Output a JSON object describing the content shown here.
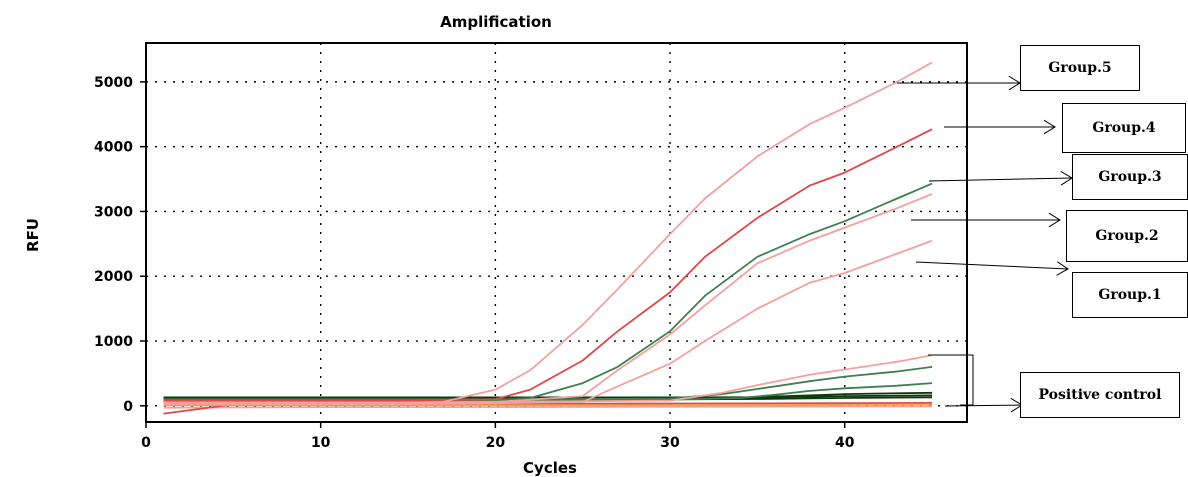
{
  "chart_data": {
    "type": "line",
    "title": "Amplification",
    "xlabel": "Cycles",
    "ylabel": "RFU",
    "xlim": [
      0,
      47
    ],
    "ylim": [
      -250,
      5600
    ],
    "xticks": [
      0,
      10,
      20,
      30,
      40
    ],
    "yticks": [
      0,
      1000,
      2000,
      3000,
      4000,
      5000
    ],
    "grid": true,
    "colors": {
      "pink": "#f4a0a0",
      "red": "#e04848",
      "green": "#3f7f4f",
      "darkgreen": "#0f3a0f",
      "orange": "#f0a040"
    },
    "series": [
      {
        "name": "Group.5",
        "color": "#f4a0a0",
        "x": [
          1,
          5,
          10,
          15,
          17,
          20,
          22,
          25,
          27,
          30,
          32,
          35,
          38,
          40,
          43,
          45
        ],
        "y": [
          50,
          50,
          50,
          50,
          60,
          250,
          550,
          1250,
          1800,
          2650,
          3200,
          3850,
          4350,
          4600,
          5000,
          5300
        ]
      },
      {
        "name": "Group.4",
        "color": "#e04848",
        "x": [
          1,
          5,
          10,
          15,
          20,
          22,
          25,
          27,
          30,
          32,
          35,
          38,
          40,
          43,
          45
        ],
        "y": [
          80,
          80,
          80,
          80,
          100,
          250,
          700,
          1150,
          1750,
          2300,
          2900,
          3400,
          3600,
          4000,
          4270
        ]
      },
      {
        "name": "Group.3",
        "color": "#3f7f4f",
        "x": [
          1,
          5,
          10,
          15,
          20,
          22,
          25,
          27,
          30,
          32,
          35,
          38,
          40,
          43,
          45
        ],
        "y": [
          80,
          80,
          80,
          80,
          90,
          120,
          350,
          600,
          1150,
          1700,
          2300,
          2650,
          2850,
          3200,
          3430
        ]
      },
      {
        "name": "Group.2",
        "color": "#f4a0a0",
        "x": [
          1,
          5,
          10,
          15,
          20,
          25,
          27,
          30,
          32,
          35,
          38,
          40,
          43,
          45
        ],
        "y": [
          50,
          50,
          50,
          50,
          60,
          150,
          550,
          1100,
          1550,
          2200,
          2550,
          2750,
          3050,
          3270
        ]
      },
      {
        "name": "Group.1",
        "color": "#f4a0a0",
        "x": [
          1,
          5,
          10,
          15,
          20,
          25,
          27,
          30,
          32,
          35,
          38,
          40,
          43,
          45
        ],
        "y": [
          30,
          30,
          30,
          30,
          40,
          60,
          300,
          650,
          1000,
          1500,
          1900,
          2050,
          2350,
          2550
        ]
      },
      {
        "name": "",
        "color": "#f4a0a0",
        "x": [
          1,
          10,
          20,
          30,
          33,
          35,
          38,
          40,
          43,
          45
        ],
        "y": [
          60,
          60,
          60,
          80,
          200,
          320,
          480,
          560,
          680,
          780
        ]
      },
      {
        "name": "",
        "color": "#3f7f4f",
        "x": [
          1,
          10,
          20,
          30,
          33,
          35,
          38,
          40,
          43,
          45
        ],
        "y": [
          100,
          100,
          100,
          110,
          180,
          260,
          380,
          450,
          530,
          600
        ]
      },
      {
        "name": "",
        "color": "#3f7f4f",
        "x": [
          1,
          10,
          20,
          30,
          34,
          36,
          38,
          40,
          43,
          45
        ],
        "y": [
          90,
          90,
          90,
          95,
          120,
          170,
          230,
          270,
          310,
          350
        ]
      },
      {
        "name": "",
        "color": "#0f3a0f",
        "x": [
          1,
          10,
          20,
          30,
          35,
          38,
          40,
          42,
          45
        ],
        "y": [
          130,
          130,
          130,
          130,
          135,
          160,
          180,
          190,
          200
        ]
      },
      {
        "name": "",
        "color": "#0f3a0f",
        "x": [
          1,
          10,
          20,
          30,
          35,
          38,
          40,
          42,
          45
        ],
        "y": [
          120,
          120,
          120,
          120,
          125,
          140,
          150,
          155,
          160
        ]
      },
      {
        "name": "",
        "color": "#0f3a0f",
        "x": [
          1,
          10,
          20,
          30,
          35,
          38,
          40,
          42,
          45
        ],
        "y": [
          100,
          100,
          100,
          100,
          105,
          115,
          120,
          125,
          130
        ]
      },
      {
        "name": "",
        "color": "#f0a040",
        "x": [
          1,
          10,
          20,
          30,
          35,
          40,
          45
        ],
        "y": [
          10,
          10,
          10,
          10,
          10,
          15,
          20
        ]
      },
      {
        "name": "",
        "color": "#e04848",
        "x": [
          1,
          5,
          10,
          20,
          30,
          40,
          45
        ],
        "y": [
          -120,
          20,
          30,
          30,
          35,
          40,
          45
        ]
      },
      {
        "name": "",
        "color": "#f4a0a0",
        "x": [
          1,
          10,
          20,
          30,
          40,
          45
        ],
        "y": [
          -30,
          -20,
          -20,
          -15,
          -10,
          -10
        ]
      }
    ]
  },
  "annotations": [
    {
      "label": "Group.5"
    },
    {
      "label": "Group.4"
    },
    {
      "label": "Group.3"
    },
    {
      "label": "Group.2"
    },
    {
      "label": "Group.1"
    },
    {
      "label": "Positive control"
    }
  ]
}
